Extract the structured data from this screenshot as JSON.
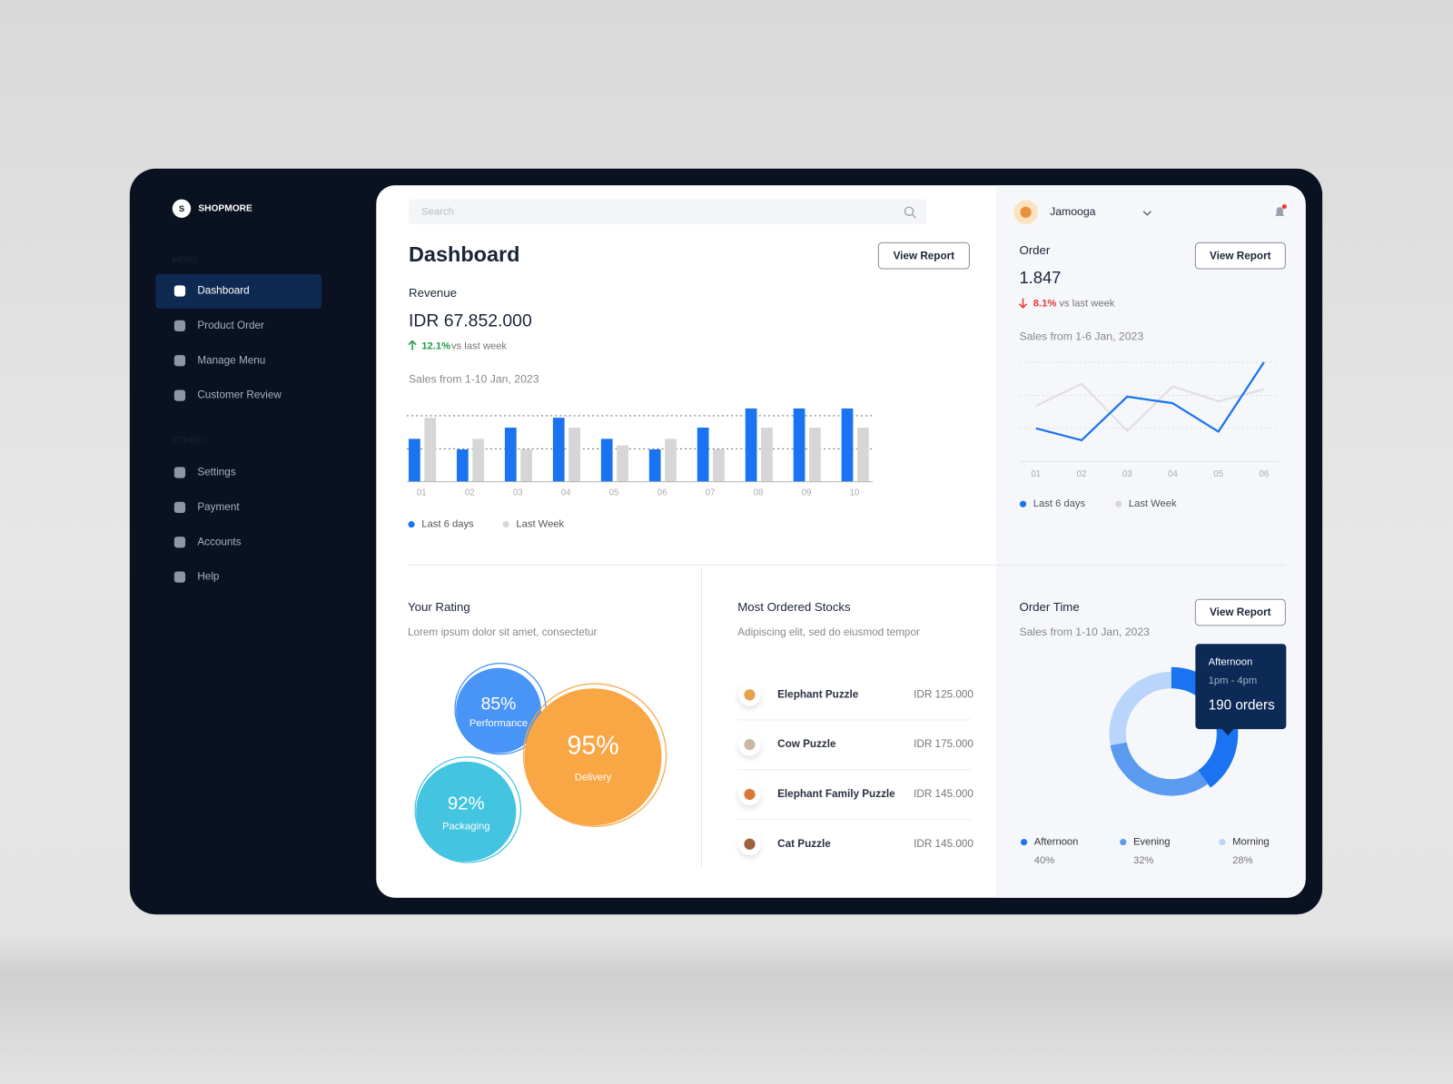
{
  "sidebar": {
    "logo": "S",
    "brand": "SHOPMORE",
    "menu_heading": "MENU",
    "menu": [
      "Dashboard",
      "Product Order",
      "Manage Menu",
      "Customer Review"
    ],
    "others_heading": "OTHERS",
    "others": [
      "Settings",
      "Payment",
      "Accounts",
      "Help"
    ]
  },
  "header": {
    "search_placeholder": "Search",
    "title": "Dashboard",
    "user": "Jamooga"
  },
  "revenue": {
    "label": "Revenue",
    "amount": "IDR 67.852.000",
    "change": "12.1%",
    "change_note": "vs last week",
    "button": "View Report"
  },
  "order": {
    "label": "Order",
    "count": "1.847",
    "change": "8.1%",
    "change_note": "vs last week",
    "button": "View Report"
  },
  "stocks": {
    "title": "Most Ordered Stocks",
    "subtitle": "Adipiscing elit, sed do eiusmod tempor",
    "items": [
      {
        "name": "Elephant Puzzle",
        "price": "IDR 125.000"
      },
      {
        "name": "Cow Puzzle",
        "price": "IDR 175.000"
      },
      {
        "name": "Elephant Family Puzzle",
        "price": "IDR 145.000"
      },
      {
        "name": "Cat Puzzle",
        "price": "IDR 145.000"
      }
    ]
  },
  "order_time": {
    "button": "View Report",
    "tooltip": {
      "label": "Afternoon",
      "time": "1pm - 4pm",
      "orders": "190 orders"
    }
  },
  "chart_data": [
    {
      "type": "bar",
      "subtitle": "Sales from 1-10 Jan, 2023",
      "categories": [
        "01",
        "02",
        "03",
        "04",
        "05",
        "06",
        "07",
        "08",
        "09",
        "10"
      ],
      "series": [
        {
          "name": "Last 6 days",
          "color": "#1a73f0",
          "values": [
            65,
            49,
            82,
            97,
            65,
            49,
            82,
            111,
            111,
            111
          ]
        },
        {
          "name": "Last Week",
          "color": "#d6d6d6",
          "values": [
            97,
            65,
            49,
            82,
            55,
            65,
            49,
            82,
            82,
            82
          ]
        }
      ],
      "ylim": [
        0,
        115
      ],
      "gridlines": [
        50,
        100
      ]
    },
    {
      "type": "line",
      "subtitle": "Sales from 1-6 Jan, 2023",
      "categories": [
        "01",
        "02",
        "03",
        "04",
        "05",
        "06"
      ],
      "series": [
        {
          "name": "Last 6 days",
          "color": "#1a73f0",
          "values": [
            10,
            6.4,
            19.6,
            17.6,
            9,
            30
          ]
        },
        {
          "name": "Last Week",
          "color": "#e0e0e0",
          "values": [
            16.8,
            23.5,
            9.2,
            22.7,
            18.2,
            21.8
          ]
        }
      ],
      "ylim": [
        0,
        30
      ],
      "gridlines": [
        10,
        20,
        30
      ]
    },
    {
      "type": "bubble",
      "title": "Your Rating",
      "subtitle": "Lorem ipsum dolor sit amet, consectetur",
      "categories": [
        "Performance",
        "Delivery",
        "Packaging"
      ],
      "values": [
        85,
        95,
        92
      ],
      "value_labels": [
        "85%",
        "95%",
        "92%"
      ],
      "colors": [
        "#3f8ef7",
        "#f9a644",
        "#43c4e0"
      ]
    },
    {
      "type": "donut",
      "title": "Order Time",
      "subtitle": "Sales from 1-10 Jan, 2023",
      "categories": [
        "Afternoon",
        "Evening",
        "Morning"
      ],
      "values": [
        40,
        32,
        28
      ],
      "value_labels": [
        "40%",
        "32%",
        "28%"
      ],
      "colors": [
        "#1a73f0",
        "#5a9bef",
        "#b9d5fb"
      ]
    }
  ]
}
